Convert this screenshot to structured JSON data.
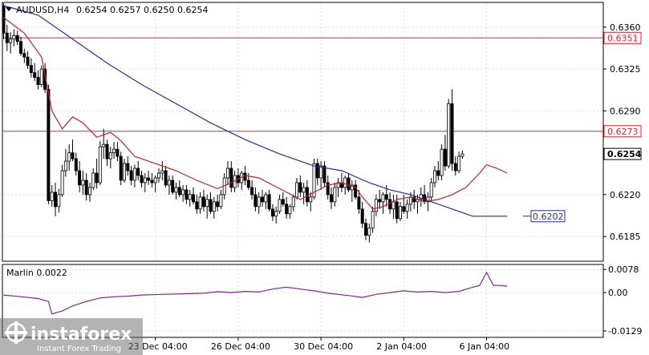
{
  "chart_data": {
    "type": "candlestick",
    "symbol": "AUDUSD,H4",
    "ohlc_header": {
      "open": "0.6254",
      "high": "0.6257",
      "low": "0.6250",
      "close": "0.6254"
    },
    "price_axis": {
      "ylim": [
        0.6165,
        0.638
      ],
      "ticks": [
        "0.6360",
        "0.6325",
        "0.6290",
        "0.6220",
        "0.6185"
      ]
    },
    "time_axis": {
      "labels": [
        {
          "text": "23 Dec 04:00",
          "bar": 44
        },
        {
          "text": "26 Dec 04:00",
          "bar": 68
        },
        {
          "text": "30 Dec 04:00",
          "bar": 92
        },
        {
          "text": "2 Jan 04:00",
          "bar": 116
        },
        {
          "text": "6 Jan 04:00",
          "bar": 140
        }
      ]
    },
    "horizontal_lines": [
      {
        "price": 0.6351,
        "label": "0.6351",
        "color": "#e8202a"
      },
      {
        "price": 0.6273,
        "label": "0.6273",
        "color": "#e8202a"
      }
    ],
    "current_price": {
      "price": 0.6254,
      "label": "0.6254"
    },
    "callout": {
      "price": 0.6202,
      "label": "0.6202",
      "color": "#1f2fa8"
    },
    "candles": [
      [
        0.6378,
        0.638,
        0.635,
        0.6355
      ],
      [
        0.6355,
        0.6362,
        0.634,
        0.6347
      ],
      [
        0.6347,
        0.6356,
        0.6338,
        0.635
      ],
      [
        0.635,
        0.6358,
        0.6344,
        0.6353
      ],
      [
        0.6353,
        0.6357,
        0.6345,
        0.6348
      ],
      [
        0.6348,
        0.6352,
        0.6336,
        0.6338
      ],
      [
        0.6338,
        0.6342,
        0.633,
        0.6335
      ],
      [
        0.6335,
        0.634,
        0.6325,
        0.6328
      ],
      [
        0.6328,
        0.6334,
        0.6318,
        0.6322
      ],
      [
        0.6322,
        0.633,
        0.6315,
        0.6318
      ],
      [
        0.6318,
        0.6324,
        0.6308,
        0.6312
      ],
      [
        0.6312,
        0.6328,
        0.631,
        0.6325
      ],
      [
        0.6325,
        0.633,
        0.6305,
        0.6308
      ],
      [
        0.6308,
        0.6312,
        0.6212,
        0.6215
      ],
      [
        0.6215,
        0.6228,
        0.621,
        0.6222
      ],
      [
        0.6222,
        0.623,
        0.6202,
        0.621
      ],
      [
        0.621,
        0.6225,
        0.6205,
        0.622
      ],
      [
        0.622,
        0.6245,
        0.6218,
        0.624
      ],
      [
        0.624,
        0.6258,
        0.6235,
        0.6248
      ],
      [
        0.6248,
        0.6262,
        0.624,
        0.6255
      ],
      [
        0.6255,
        0.6266,
        0.6248,
        0.625
      ],
      [
        0.625,
        0.6255,
        0.6236,
        0.624
      ],
      [
        0.624,
        0.6248,
        0.6222,
        0.6228
      ],
      [
        0.6228,
        0.624,
        0.622,
        0.6232
      ],
      [
        0.6232,
        0.6238,
        0.6215,
        0.622
      ],
      [
        0.622,
        0.623,
        0.6214,
        0.6226
      ],
      [
        0.6226,
        0.6242,
        0.6224,
        0.6238
      ],
      [
        0.6238,
        0.625,
        0.6225,
        0.623
      ],
      [
        0.623,
        0.6265,
        0.6228,
        0.626
      ],
      [
        0.626,
        0.6275,
        0.625,
        0.6262
      ],
      [
        0.6262,
        0.6266,
        0.6244,
        0.625
      ],
      [
        0.625,
        0.626,
        0.6242,
        0.6255
      ],
      [
        0.6255,
        0.6264,
        0.625,
        0.6258
      ],
      [
        0.6258,
        0.6264,
        0.6248,
        0.6252
      ],
      [
        0.6252,
        0.6256,
        0.6228,
        0.6232
      ],
      [
        0.6232,
        0.625,
        0.623,
        0.6246
      ],
      [
        0.6246,
        0.6252,
        0.6236,
        0.624
      ],
      [
        0.624,
        0.6244,
        0.6228,
        0.6232
      ],
      [
        0.6232,
        0.6245,
        0.6226,
        0.6242
      ],
      [
        0.6242,
        0.6248,
        0.6232,
        0.6236
      ],
      [
        0.6236,
        0.624,
        0.6226,
        0.623
      ],
      [
        0.623,
        0.6238,
        0.6222,
        0.6234
      ],
      [
        0.6234,
        0.624,
        0.6228,
        0.6232
      ],
      [
        0.6232,
        0.6238,
        0.6226,
        0.623
      ],
      [
        0.623,
        0.6236,
        0.6222,
        0.6234
      ],
      [
        0.6234,
        0.6242,
        0.623,
        0.6238
      ],
      [
        0.6238,
        0.6248,
        0.6232,
        0.624
      ],
      [
        0.624,
        0.6244,
        0.6226,
        0.6228
      ],
      [
        0.6228,
        0.6236,
        0.622,
        0.6232
      ],
      [
        0.6232,
        0.6236,
        0.622,
        0.6222
      ],
      [
        0.6222,
        0.623,
        0.6216,
        0.6226
      ],
      [
        0.6226,
        0.6232,
        0.6218,
        0.622
      ],
      [
        0.622,
        0.6228,
        0.6214,
        0.6224
      ],
      [
        0.6224,
        0.6228,
        0.6212,
        0.6216
      ],
      [
        0.6216,
        0.6224,
        0.621,
        0.622
      ],
      [
        0.622,
        0.6226,
        0.6212,
        0.6214
      ],
      [
        0.6214,
        0.622,
        0.6204,
        0.6208
      ],
      [
        0.6208,
        0.6222,
        0.6204,
        0.6218
      ],
      [
        0.6218,
        0.6224,
        0.6206,
        0.621
      ],
      [
        0.621,
        0.622,
        0.62,
        0.6216
      ],
      [
        0.6216,
        0.6222,
        0.6204,
        0.6206
      ],
      [
        0.6206,
        0.6218,
        0.62,
        0.6214
      ],
      [
        0.6214,
        0.622,
        0.6206,
        0.621
      ],
      [
        0.621,
        0.6224,
        0.6208,
        0.622
      ],
      [
        0.622,
        0.6238,
        0.6216,
        0.6234
      ],
      [
        0.6234,
        0.6248,
        0.6228,
        0.6242
      ],
      [
        0.6242,
        0.6248,
        0.6222,
        0.6226
      ],
      [
        0.6226,
        0.624,
        0.6222,
        0.6236
      ],
      [
        0.6236,
        0.6242,
        0.6226,
        0.623
      ],
      [
        0.623,
        0.624,
        0.6224,
        0.6238
      ],
      [
        0.6238,
        0.6244,
        0.6228,
        0.6232
      ],
      [
        0.6232,
        0.6238,
        0.6224,
        0.6226
      ],
      [
        0.6226,
        0.6232,
        0.6216,
        0.622
      ],
      [
        0.622,
        0.6226,
        0.6206,
        0.621
      ],
      [
        0.621,
        0.6222,
        0.6204,
        0.6218
      ],
      [
        0.6218,
        0.6224,
        0.621,
        0.6214
      ],
      [
        0.6214,
        0.6222,
        0.6208,
        0.622
      ],
      [
        0.622,
        0.6224,
        0.6206,
        0.6208
      ],
      [
        0.6208,
        0.6212,
        0.6198,
        0.6202
      ],
      [
        0.6202,
        0.621,
        0.6196,
        0.6206
      ],
      [
        0.6206,
        0.622,
        0.6204,
        0.6216
      ],
      [
        0.6216,
        0.6222,
        0.621,
        0.6212
      ],
      [
        0.6212,
        0.6218,
        0.62,
        0.6204
      ],
      [
        0.6204,
        0.6212,
        0.62,
        0.621
      ],
      [
        0.621,
        0.622,
        0.6206,
        0.6218
      ],
      [
        0.6218,
        0.6234,
        0.6216,
        0.623
      ],
      [
        0.623,
        0.6236,
        0.6218,
        0.6222
      ],
      [
        0.6222,
        0.623,
        0.6212,
        0.6226
      ],
      [
        0.6226,
        0.6232,
        0.621,
        0.6214
      ],
      [
        0.6214,
        0.6222,
        0.6206,
        0.6218
      ],
      [
        0.6218,
        0.625,
        0.6216,
        0.6246
      ],
      [
        0.6246,
        0.625,
        0.6228,
        0.6234
      ],
      [
        0.6234,
        0.6248,
        0.6224,
        0.6244
      ],
      [
        0.6244,
        0.6248,
        0.6226,
        0.623
      ],
      [
        0.623,
        0.6236,
        0.6216,
        0.622
      ],
      [
        0.622,
        0.6226,
        0.6208,
        0.6214
      ],
      [
        0.6214,
        0.623,
        0.621,
        0.6226
      ],
      [
        0.6226,
        0.6234,
        0.6218,
        0.623
      ],
      [
        0.623,
        0.6238,
        0.6222,
        0.6226
      ],
      [
        0.6226,
        0.6236,
        0.622,
        0.6234
      ],
      [
        0.6234,
        0.6238,
        0.6222,
        0.6224
      ],
      [
        0.6224,
        0.6232,
        0.6214,
        0.6228
      ],
      [
        0.6228,
        0.6232,
        0.6216,
        0.6218
      ],
      [
        0.6218,
        0.6224,
        0.6204,
        0.6208
      ],
      [
        0.6208,
        0.6214,
        0.6192,
        0.6196
      ],
      [
        0.6196,
        0.62,
        0.6182,
        0.6186
      ],
      [
        0.6186,
        0.6196,
        0.618,
        0.6192
      ],
      [
        0.6192,
        0.621,
        0.6188,
        0.6206
      ],
      [
        0.6206,
        0.622,
        0.6202,
        0.6216
      ],
      [
        0.6216,
        0.6224,
        0.6208,
        0.6214
      ],
      [
        0.6214,
        0.6222,
        0.6204,
        0.622
      ],
      [
        0.622,
        0.6228,
        0.621,
        0.6216
      ],
      [
        0.6216,
        0.6222,
        0.6204,
        0.6208
      ],
      [
        0.6208,
        0.622,
        0.62,
        0.6214
      ],
      [
        0.6214,
        0.622,
        0.6196,
        0.62
      ],
      [
        0.62,
        0.6214,
        0.6198,
        0.621
      ],
      [
        0.621,
        0.622,
        0.6204,
        0.6206
      ],
      [
        0.6206,
        0.6216,
        0.62,
        0.6212
      ],
      [
        0.6212,
        0.6222,
        0.6206,
        0.6218
      ],
      [
        0.6218,
        0.6224,
        0.6208,
        0.6214
      ],
      [
        0.6214,
        0.622,
        0.6204,
        0.6216
      ],
      [
        0.6216,
        0.6226,
        0.621,
        0.622
      ],
      [
        0.622,
        0.6228,
        0.6212,
        0.6214
      ],
      [
        0.6214,
        0.6222,
        0.6206,
        0.6218
      ],
      [
        0.6218,
        0.6234,
        0.6214,
        0.623
      ],
      [
        0.623,
        0.6244,
        0.6226,
        0.624
      ],
      [
        0.624,
        0.6248,
        0.6232,
        0.6236
      ],
      [
        0.6236,
        0.6262,
        0.6232,
        0.6258
      ],
      [
        0.6258,
        0.627,
        0.624,
        0.6244
      ],
      [
        0.6244,
        0.63,
        0.6242,
        0.6296
      ],
      [
        0.6296,
        0.6308,
        0.624,
        0.6246
      ],
      [
        0.6246,
        0.6252,
        0.6236,
        0.624
      ],
      [
        0.624,
        0.6256,
        0.6238,
        0.6252
      ],
      [
        0.6252,
        0.6257,
        0.625,
        0.6254
      ]
    ],
    "ma_fast": {
      "color": "#cc1f1f",
      "points": [
        [
          0,
          0.6368
        ],
        [
          6,
          0.6355
        ],
        [
          11,
          0.6335
        ],
        [
          14,
          0.629
        ],
        [
          17,
          0.6275
        ],
        [
          20,
          0.6285
        ],
        [
          23,
          0.628
        ],
        [
          27,
          0.6268
        ],
        [
          31,
          0.6272
        ],
        [
          34,
          0.6265
        ],
        [
          38,
          0.6252
        ],
        [
          44,
          0.6246
        ],
        [
          50,
          0.624
        ],
        [
          56,
          0.6232
        ],
        [
          62,
          0.6225
        ],
        [
          66,
          0.623
        ],
        [
          70,
          0.6236
        ],
        [
          74,
          0.6234
        ],
        [
          78,
          0.6228
        ],
        [
          82,
          0.6222
        ],
        [
          86,
          0.6216
        ],
        [
          90,
          0.6222
        ],
        [
          94,
          0.6228
        ],
        [
          98,
          0.623
        ],
        [
          102,
          0.6226
        ],
        [
          104,
          0.6218
        ],
        [
          107,
          0.6208
        ],
        [
          110,
          0.621
        ],
        [
          114,
          0.6216
        ],
        [
          118,
          0.6218
        ],
        [
          122,
          0.6214
        ],
        [
          126,
          0.6216
        ],
        [
          130,
          0.622
        ],
        [
          134,
          0.6226
        ],
        [
          138,
          0.6238
        ],
        [
          140,
          0.6245
        ],
        [
          143,
          0.6242
        ],
        [
          146,
          0.6238
        ]
      ]
    },
    "ma_slow": {
      "color": "#1f2fa8",
      "points": [
        [
          0,
          0.6378
        ],
        [
          10,
          0.637
        ],
        [
          20,
          0.635
        ],
        [
          30,
          0.633
        ],
        [
          40,
          0.6312
        ],
        [
          50,
          0.6296
        ],
        [
          60,
          0.628
        ],
        [
          70,
          0.6266
        ],
        [
          80,
          0.6254
        ],
        [
          90,
          0.6244
        ],
        [
          98,
          0.624
        ],
        [
          106,
          0.623
        ],
        [
          112,
          0.6224
        ],
        [
          118,
          0.622
        ],
        [
          124,
          0.6214
        ],
        [
          128,
          0.621
        ],
        [
          132,
          0.6206
        ],
        [
          136,
          0.6202
        ],
        [
          146,
          0.6202
        ]
      ]
    },
    "indicator": {
      "name": "Marlin",
      "value_label": "Marlin 0.0022",
      "ticks": [
        "0.0078",
        "0.00",
        "-0.0129"
      ],
      "ylim": [
        -0.0148,
        0.0092
      ],
      "color": "#7a2a8a",
      "points": [
        [
          0,
          -0.0008
        ],
        [
          6,
          -0.0015
        ],
        [
          10,
          -0.002
        ],
        [
          13,
          -0.003
        ],
        [
          14,
          -0.0072
        ],
        [
          17,
          -0.0062
        ],
        [
          20,
          -0.0045
        ],
        [
          24,
          -0.003
        ],
        [
          28,
          -0.0018
        ],
        [
          32,
          -0.0014
        ],
        [
          36,
          -0.0012
        ],
        [
          40,
          -0.0008
        ],
        [
          46,
          -0.0006
        ],
        [
          52,
          -0.0004
        ],
        [
          58,
          -0.0002
        ],
        [
          62,
          0.0003
        ],
        [
          66,
          0.0
        ],
        [
          70,
          0.0004
        ],
        [
          74,
          0.0002
        ],
        [
          78,
          0.0012
        ],
        [
          82,
          0.0018
        ],
        [
          86,
          0.0012
        ],
        [
          90,
          0.0006
        ],
        [
          94,
          -0.0002
        ],
        [
          100,
          -0.001
        ],
        [
          104,
          -0.0016
        ],
        [
          108,
          -0.0006
        ],
        [
          112,
          0.0
        ],
        [
          116,
          0.0006
        ],
        [
          120,
          0.0002
        ],
        [
          124,
          0.0004
        ],
        [
          128,
          0.0
        ],
        [
          132,
          0.0004
        ],
        [
          136,
          0.0018
        ],
        [
          138,
          0.0024
        ],
        [
          140,
          0.0068
        ],
        [
          142,
          0.0024
        ],
        [
          144,
          0.0024
        ],
        [
          146,
          0.0022
        ]
      ]
    }
  },
  "watermark": {
    "brand": "instaforex",
    "tagline": "Instant Forex Trading"
  }
}
